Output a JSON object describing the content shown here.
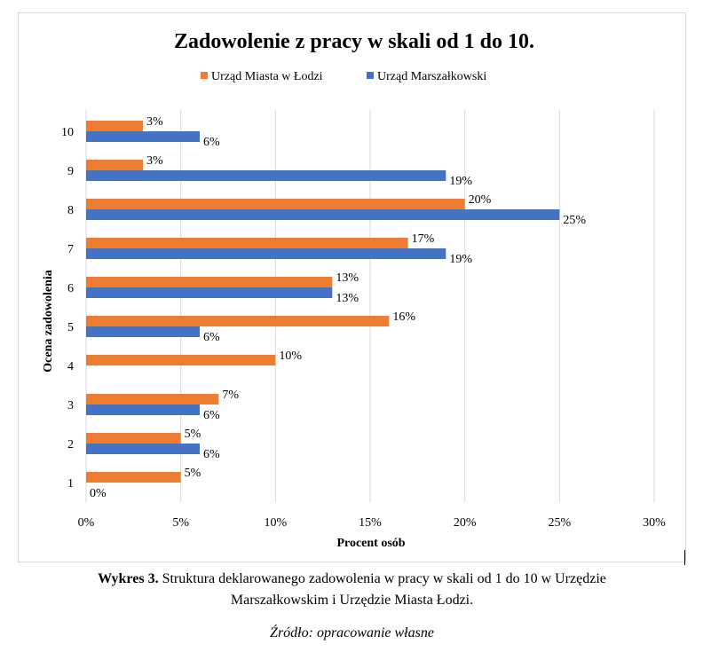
{
  "chart_data": {
    "type": "bar",
    "orientation": "horizontal",
    "title": "Zadowolenie z pracy w skali od 1 do 10.",
    "xlabel": "Procent osób",
    "ylabel": "Ocena zadowolenia",
    "categories": [
      "1",
      "2",
      "3",
      "4",
      "5",
      "6",
      "7",
      "8",
      "9",
      "10"
    ],
    "series": [
      {
        "name": "Urząd Miasta w Łodzi",
        "color": "#ED7D31",
        "values": [
          5,
          5,
          7,
          10,
          16,
          13,
          17,
          20,
          3,
          3
        ],
        "labels": [
          "5%",
          "5%",
          "7%",
          "10%",
          "16%",
          "13%",
          "17%",
          "20%",
          "3%",
          "3%"
        ]
      },
      {
        "name": "Urząd Marszałkowski",
        "color": "#4472C4",
        "values": [
          0,
          6,
          6,
          null,
          6,
          13,
          19,
          25,
          19,
          6
        ],
        "labels": [
          "0%",
          "6%",
          "6%",
          null,
          "6%",
          "13%",
          "19%",
          "25%",
          "19%",
          "6%"
        ]
      }
    ],
    "xlim": [
      0,
      30
    ],
    "xticks": [
      "0%",
      "5%",
      "10%",
      "15%",
      "20%",
      "25%",
      "30%"
    ],
    "grid": true,
    "legend_position": "top"
  },
  "caption": {
    "prefix": "Wykres 3.",
    "line1": " Struktura deklarowanego  zadowolenia w pracy w skali od 1 do 10 w Urzędzie",
    "line2": "Marszałkowskim i Urzędzie Miasta Łodzi."
  },
  "source": "Źródło: opracowanie własne"
}
